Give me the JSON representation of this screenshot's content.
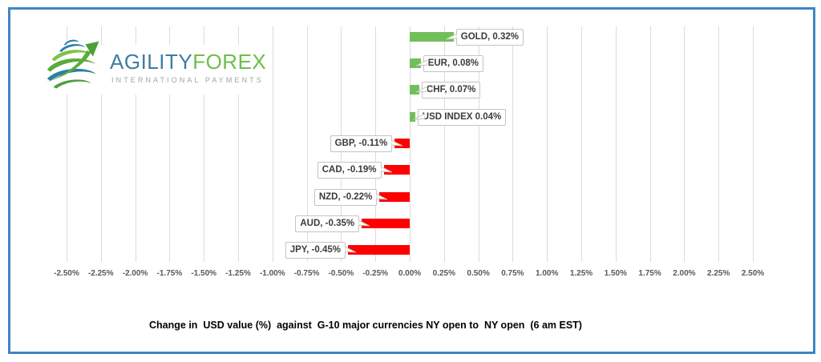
{
  "frame": {
    "border_color": "#3E86C5"
  },
  "logo": {
    "brand_primary": "AGILITY",
    "brand_secondary": "FOREX",
    "tagline": "INTERNATIONAL PAYMENTS",
    "primary_color": "#3F7BA4",
    "secondary_color": "#6CBE4B",
    "tagline_color": "#9EA4AA",
    "icon": "globe-swoosh-arrow-icon"
  },
  "chart_data": {
    "type": "bar",
    "orientation": "horizontal",
    "title": "Change in  USD value (%)  against  G-10 major currencies NY open to  NY open  (6 am EST)",
    "categories": [
      "GOLD",
      "EUR",
      "CHF",
      "USD INDEX",
      "GBP",
      "CAD",
      "NZD",
      "AUD",
      "JPY"
    ],
    "values": [
      0.32,
      0.08,
      0.07,
      0.04,
      -0.11,
      -0.19,
      -0.22,
      -0.35,
      -0.45
    ],
    "point_labels": [
      "GOLD, 0.32%",
      "EUR, 0.08%",
      "CHF, 0.07%",
      "USD INDEX 0.04%",
      "GBP, -0.11%",
      "CAD, -0.19%",
      "NZD, -0.22%",
      "AUD, -0.35%",
      "JPY, -0.45%"
    ],
    "axis": {
      "min": -2.5,
      "max": 2.5,
      "step": 0.25,
      "tick_labels": [
        "-2.50%",
        "-2.25%",
        "-2.00%",
        "-1.75%",
        "-1.50%",
        "-1.25%",
        "-1.00%",
        "-0.75%",
        "-0.50%",
        "-0.25%",
        "0.00%",
        "0.25%",
        "0.50%",
        "0.75%",
        "1.00%",
        "1.25%",
        "1.50%",
        "1.75%",
        "2.00%",
        "2.25%",
        "2.50%"
      ]
    },
    "positive_color": "#71BF5B",
    "negative_color": "#FF0000",
    "gridline_color": "#DCDCDC",
    "tick_color": "#595959",
    "grid": true,
    "legend": "none"
  }
}
